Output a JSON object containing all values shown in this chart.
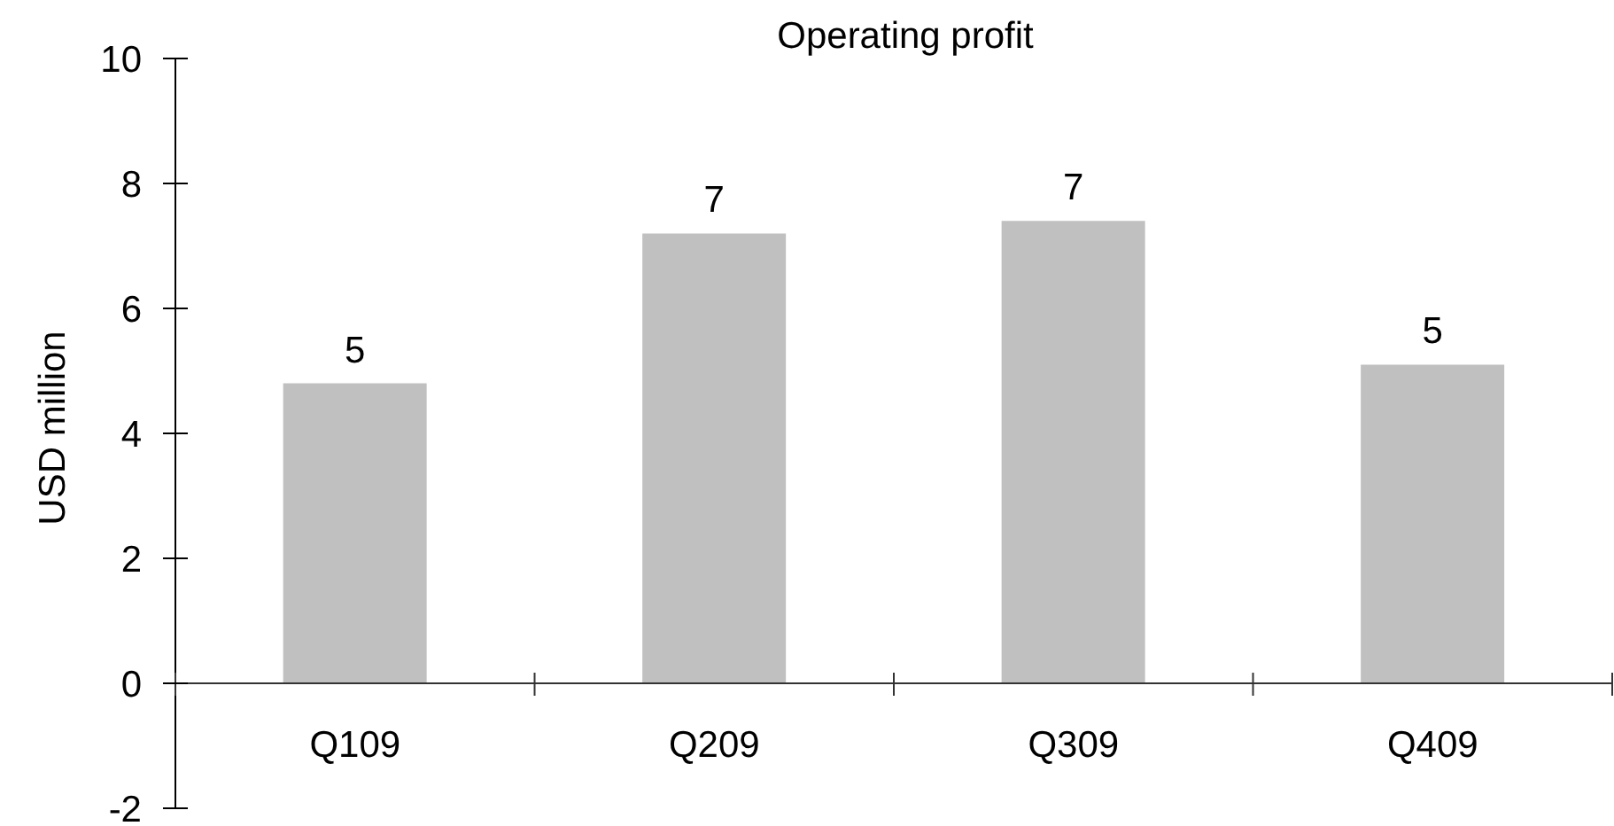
{
  "chart_data": {
    "type": "bar",
    "title": "Operating profit",
    "ylabel": "USD million",
    "categories": [
      "Q109",
      "Q209",
      "Q309",
      "Q409"
    ],
    "values": [
      4.8,
      7.2,
      7.4,
      5.1
    ],
    "value_labels": [
      "5",
      "7",
      "7",
      "5"
    ],
    "color": "#c0c0c0",
    "ylim": [
      -2,
      10
    ],
    "yticks": [
      -2,
      0,
      2,
      4,
      6,
      8,
      10
    ]
  }
}
